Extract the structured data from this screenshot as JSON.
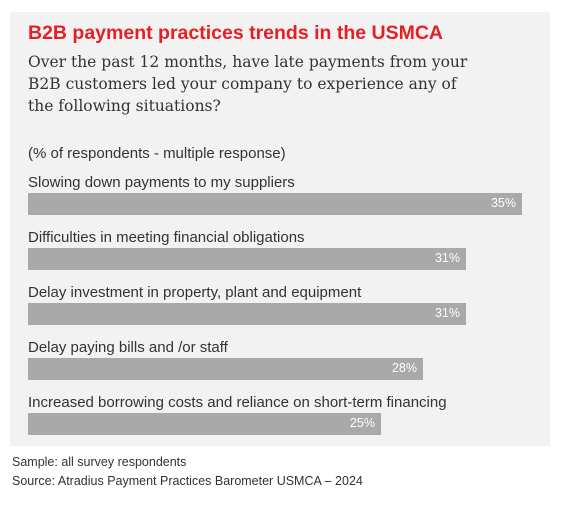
{
  "chart_data": {
    "type": "bar",
    "orientation": "horizontal",
    "title": "B2B payment practices trends in the USMCA",
    "subtitle": "Over the past 12 months, have late payments from your B2B customers led your company to experience any of the following situations?",
    "note": "(% of respondents - multiple response)",
    "categories": [
      "Slowing down payments to my suppliers",
      "Difficulties in meeting financial obligations",
      "Delay investment in property, plant and equipment",
      "Delay paying bills and /or staff",
      "Increased borrowing costs and reliance on short-term financing"
    ],
    "values": [
      35,
      31,
      31,
      28,
      25
    ],
    "value_labels": [
      "35%",
      "31%",
      "31%",
      "28%",
      "25%"
    ],
    "unit": "%",
    "bar_color": "#a9a9a9",
    "title_color": "#e41f26",
    "grid": false
  },
  "footer": {
    "sample": "Sample: all survey respondents",
    "source": "Source: Atradius Payment Practices Barometer USMCA – 2024"
  }
}
